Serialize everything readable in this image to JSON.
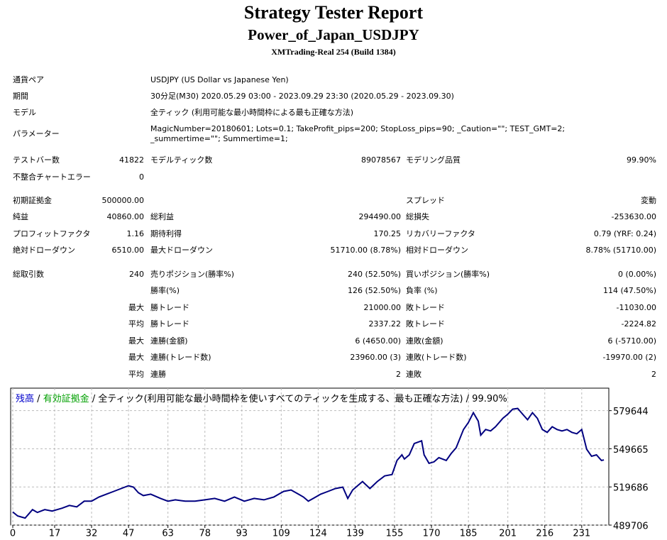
{
  "header": {
    "title": "Strategy Tester Report",
    "subtitle": "Power_of_Japan_USDJPY",
    "build": "XMTrading-Real 254 (Build 1384)"
  },
  "info": [
    {
      "label": "通貨ペア",
      "value": "USDJPY (US Dollar vs Japanese Yen)"
    },
    {
      "label": "期間",
      "value": "30分足(M30) 2020.05.29 03:00 - 2023.09.29 23:30 (2020.05.29 - 2023.09.30)"
    },
    {
      "label": "モデル",
      "value": "全ティック (利用可能な最小時間枠による最も正確な方法)"
    },
    {
      "label": "パラメーター",
      "value": "MagicNumber=20180601; Lots=0.1; TakeProfit_pips=200; StopLoss_pips=90; _Caution=\"\"; TEST_GMT=2; _summertime=\"\"; Summertime=1;"
    }
  ],
  "stats": [
    [
      "テストバー数",
      "41822",
      "モデルティック数",
      "89078567",
      "モデリング品質",
      "99.90%"
    ],
    [
      "不整合チャートエラー",
      "0",
      null,
      null,
      null,
      null
    ],
    [
      "初期証拠金",
      "500000.00",
      null,
      null,
      "スプレッド",
      "変動"
    ],
    [
      "純益",
      "40860.00",
      "総利益",
      "294490.00",
      "総損失",
      "-253630.00"
    ],
    [
      "プロフィットファクタ",
      "1.16",
      "期待利得",
      "170.25",
      "リカバリーファクタ",
      "0.79 (YRF: 0.24)"
    ],
    [
      "絶対ドローダウン",
      "6510.00",
      "最大ドローダウン",
      "51710.00 (8.78%)",
      "相対ドローダウン",
      "8.78% (51710.00)"
    ],
    [
      "総取引数",
      "240",
      "売りポジション(勝率%)",
      "240 (52.50%)",
      "買いポジション(勝率%)",
      "0 (0.00%)"
    ],
    [
      null,
      null,
      "勝率(%)",
      "126 (52.50%)",
      "負率 (%)",
      "114 (47.50%)"
    ],
    [
      null,
      "最大",
      "勝トレード",
      "21000.00",
      "敗トレード",
      "-11030.00"
    ],
    [
      null,
      "平均",
      "勝トレード",
      "2337.22",
      "敗トレード",
      "-2224.82"
    ],
    [
      null,
      "最大",
      "連勝(金額)",
      "6 (4650.00)",
      "連敗(金額)",
      "6 (-5710.00)"
    ],
    [
      null,
      "最大",
      "連勝(トレード数)",
      "23960.00 (3)",
      "連敗(トレード数)",
      "-19970.00 (2)"
    ],
    [
      null,
      "平均",
      "連勝",
      "2",
      "連敗",
      "2"
    ]
  ],
  "chart_data": {
    "type": "line",
    "separator": "/",
    "equity_label": "有効証拠金",
    "equity_color": "#00a000",
    "description": "全ティック(利用可能な最小時間枠を使いすべてのティックを生成する、最も正確な方法) / 99.90%",
    "x": [
      0,
      2,
      5,
      8,
      10,
      13,
      16,
      20,
      23,
      26,
      29,
      32,
      35,
      38,
      41,
      44,
      47,
      49,
      51,
      53,
      56,
      60,
      63,
      66,
      70,
      74,
      78,
      82,
      86,
      90,
      94,
      98,
      102,
      106,
      108,
      110,
      113,
      116,
      118,
      120,
      122,
      125,
      128,
      131,
      134,
      136,
      138,
      140,
      142,
      145,
      148,
      151,
      154,
      156,
      158,
      159,
      161,
      163,
      166,
      167,
      169,
      171,
      173,
      176,
      178,
      180,
      183,
      185,
      187,
      189,
      190,
      192,
      194,
      196,
      199,
      201,
      203,
      205,
      207,
      209,
      211,
      213,
      215,
      217,
      219,
      221,
      223,
      225,
      227,
      229,
      231,
      233,
      235,
      237,
      239,
      240
    ],
    "series": [
      {
        "name": "残高",
        "color": "#000080",
        "values": [
          500000,
          496880,
          495230,
          501850,
          499640,
          501850,
          500750,
          502950,
          505160,
          504060,
          508470,
          508470,
          511790,
          513990,
          516200,
          518410,
          520620,
          519510,
          515100,
          512890,
          513990,
          510680,
          508470,
          509580,
          508470,
          508470,
          509580,
          510680,
          508470,
          511790,
          508470,
          510680,
          509580,
          511790,
          513990,
          516200,
          517310,
          513990,
          511790,
          508470,
          510680,
          513990,
          516200,
          518410,
          519510,
          510680,
          517310,
          520620,
          523930,
          518410,
          523930,
          528350,
          529450,
          540490,
          544910,
          541590,
          544910,
          553740,
          555950,
          544910,
          538280,
          539390,
          542700,
          540490,
          546010,
          550430,
          564780,
          570300,
          578030,
          571400,
          560360,
          564780,
          563680,
          566990,
          573610,
          576920,
          580790,
          581340,
          576920,
          572510,
          578030,
          573610,
          564780,
          562570,
          566990,
          564780,
          563680,
          564780,
          562570,
          561470,
          564780,
          549320,
          543800,
          544910,
          540490,
          540860
        ]
      }
    ],
    "xlim": [
      0,
      242
    ],
    "xticks": [
      0,
      17,
      32,
      47,
      63,
      78,
      93,
      109,
      124,
      139,
      155,
      170,
      185,
      201,
      216,
      231
    ],
    "ylim": [
      489706,
      597300
    ],
    "yticks": [
      489706,
      519686,
      549665,
      579644
    ],
    "grid": true
  }
}
